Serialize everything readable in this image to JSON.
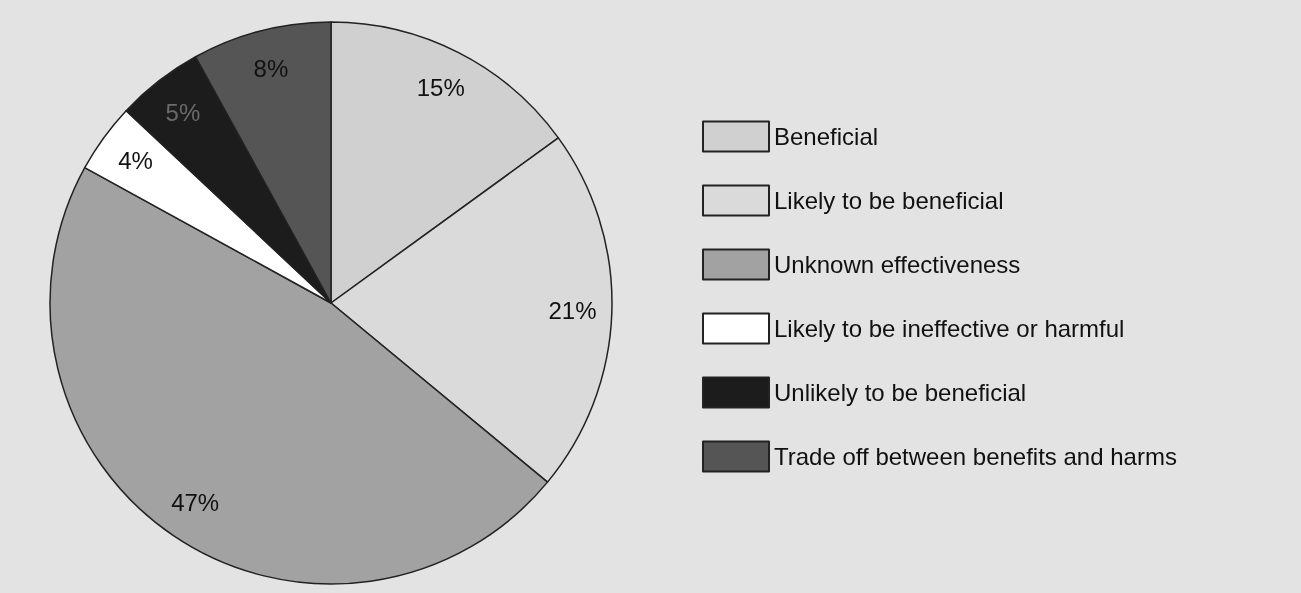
{
  "chart_data": {
    "type": "pie",
    "categories": [
      "Beneficial",
      "Likely to be beneficial",
      "Unknown effectiveness",
      "Likely to be ineffective or harmful",
      "Unlikely to be beneficial",
      "Trade off between benefits and harms"
    ],
    "values": [
      15,
      21,
      47,
      4,
      5,
      8
    ],
    "colors": [
      "#d0d0d0",
      "#dadada",
      "#a2a2a2",
      "#ffffff",
      "#1c1c1c",
      "#555555"
    ],
    "value_labels": [
      "15%",
      "21%",
      "47%",
      "4%",
      "5%",
      "8%"
    ],
    "legend": "right"
  }
}
